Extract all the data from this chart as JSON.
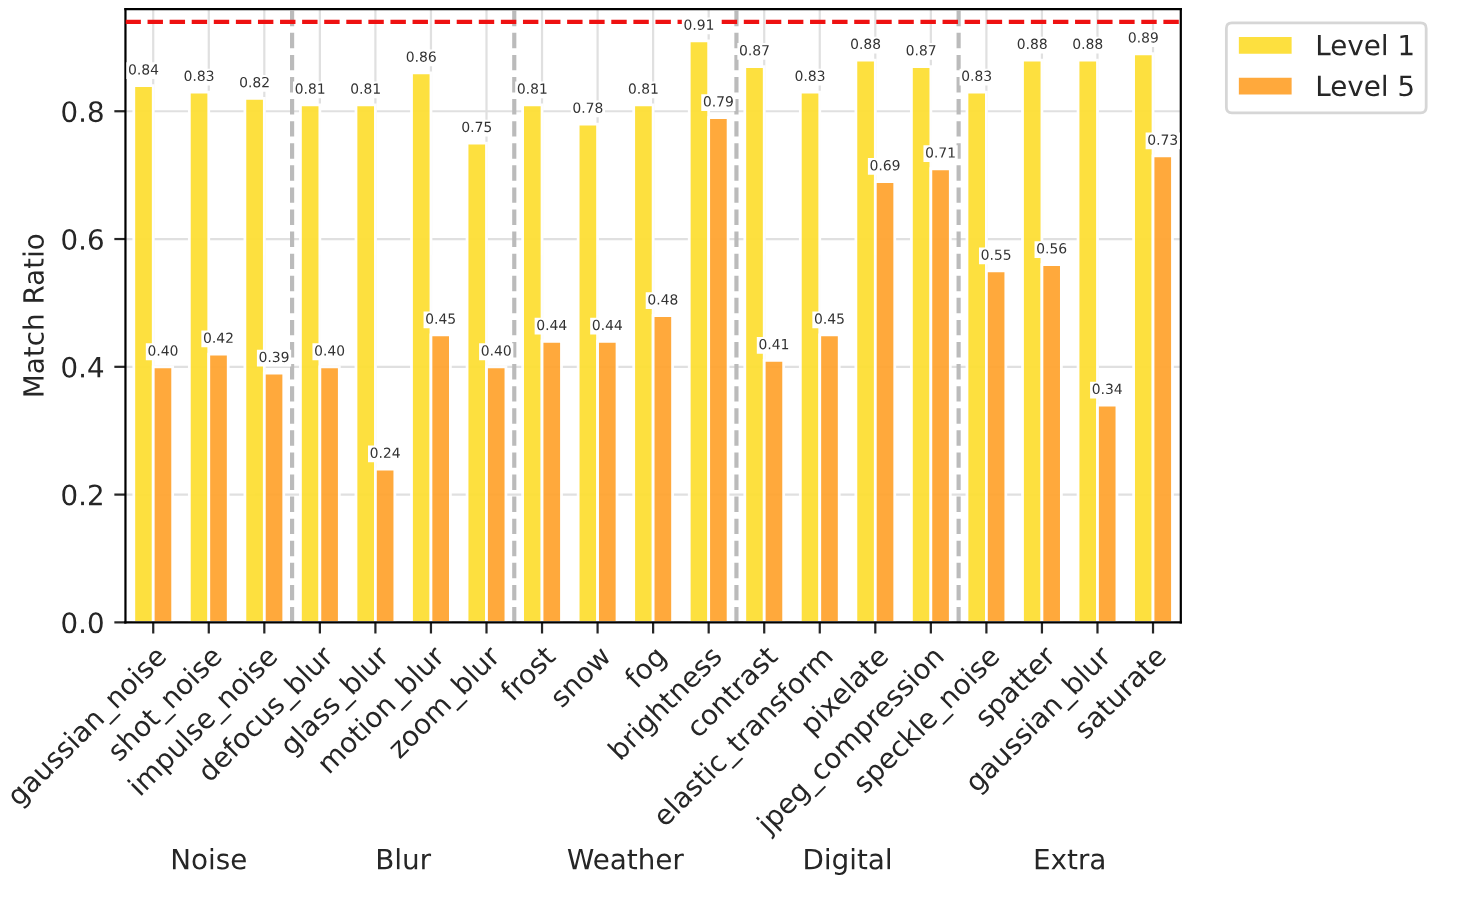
{
  "chart_data": {
    "type": "bar",
    "ylabel": "Match Ratio",
    "categories": [
      "gaussian_noise",
      "shot_noise",
      "impulse_noise",
      "defocus_blur",
      "glass_blur",
      "motion_blur",
      "zoom_blur",
      "frost",
      "snow",
      "fog",
      "brightness",
      "contrast",
      "elastic_transform",
      "pixelate",
      "jpeg_compression",
      "speckle_noise",
      "spatter",
      "gaussian_blur",
      "saturate"
    ],
    "series": [
      {
        "name": "Level 1",
        "color": "#fddf35",
        "values": [
          0.84,
          0.83,
          0.82,
          0.81,
          0.81,
          0.86,
          0.75,
          0.81,
          0.78,
          0.81,
          0.91,
          0.87,
          0.83,
          0.88,
          0.87,
          0.83,
          0.88,
          0.88,
          0.89
        ],
        "value_labels": [
          "0.84",
          "0.83",
          "0.82",
          "0.81",
          "0.81",
          "0.86",
          "0.75",
          "0.81",
          "0.78",
          "0.81",
          "0.91",
          "0.87",
          "0.83",
          "0.88",
          "0.87",
          "0.83",
          "0.88",
          "0.88",
          "0.89"
        ]
      },
      {
        "name": "Level 5",
        "color": "#ffa532",
        "values": [
          0.4,
          0.42,
          0.39,
          0.4,
          0.24,
          0.45,
          0.4,
          0.44,
          0.44,
          0.48,
          0.79,
          0.41,
          0.45,
          0.69,
          0.71,
          0.55,
          0.56,
          0.34,
          0.73
        ],
        "value_labels": [
          "0.40",
          "0.42",
          "0.39",
          "0.40",
          "0.24",
          "0.45",
          "0.40",
          "0.44",
          "0.44",
          "0.48",
          "0.79",
          "0.41",
          "0.45",
          "0.69",
          "0.71",
          "0.55",
          "0.56",
          "0.34",
          "0.73"
        ]
      }
    ],
    "ylim": [
      0,
      0.96
    ],
    "yticks": [
      {
        "value": 0,
        "label": "0.0"
      },
      0.2,
      0.4,
      0.6,
      0.8
    ],
    "grid": true,
    "legend": "top right",
    "ref_lines": [
      {
        "axis": "y",
        "value": 0.94,
        "color": "#ee1111",
        "line_style": "dashed"
      }
    ],
    "annotations": [
      "Noise",
      "Blur",
      "Weather",
      "Digital",
      "Extra"
    ]
  }
}
